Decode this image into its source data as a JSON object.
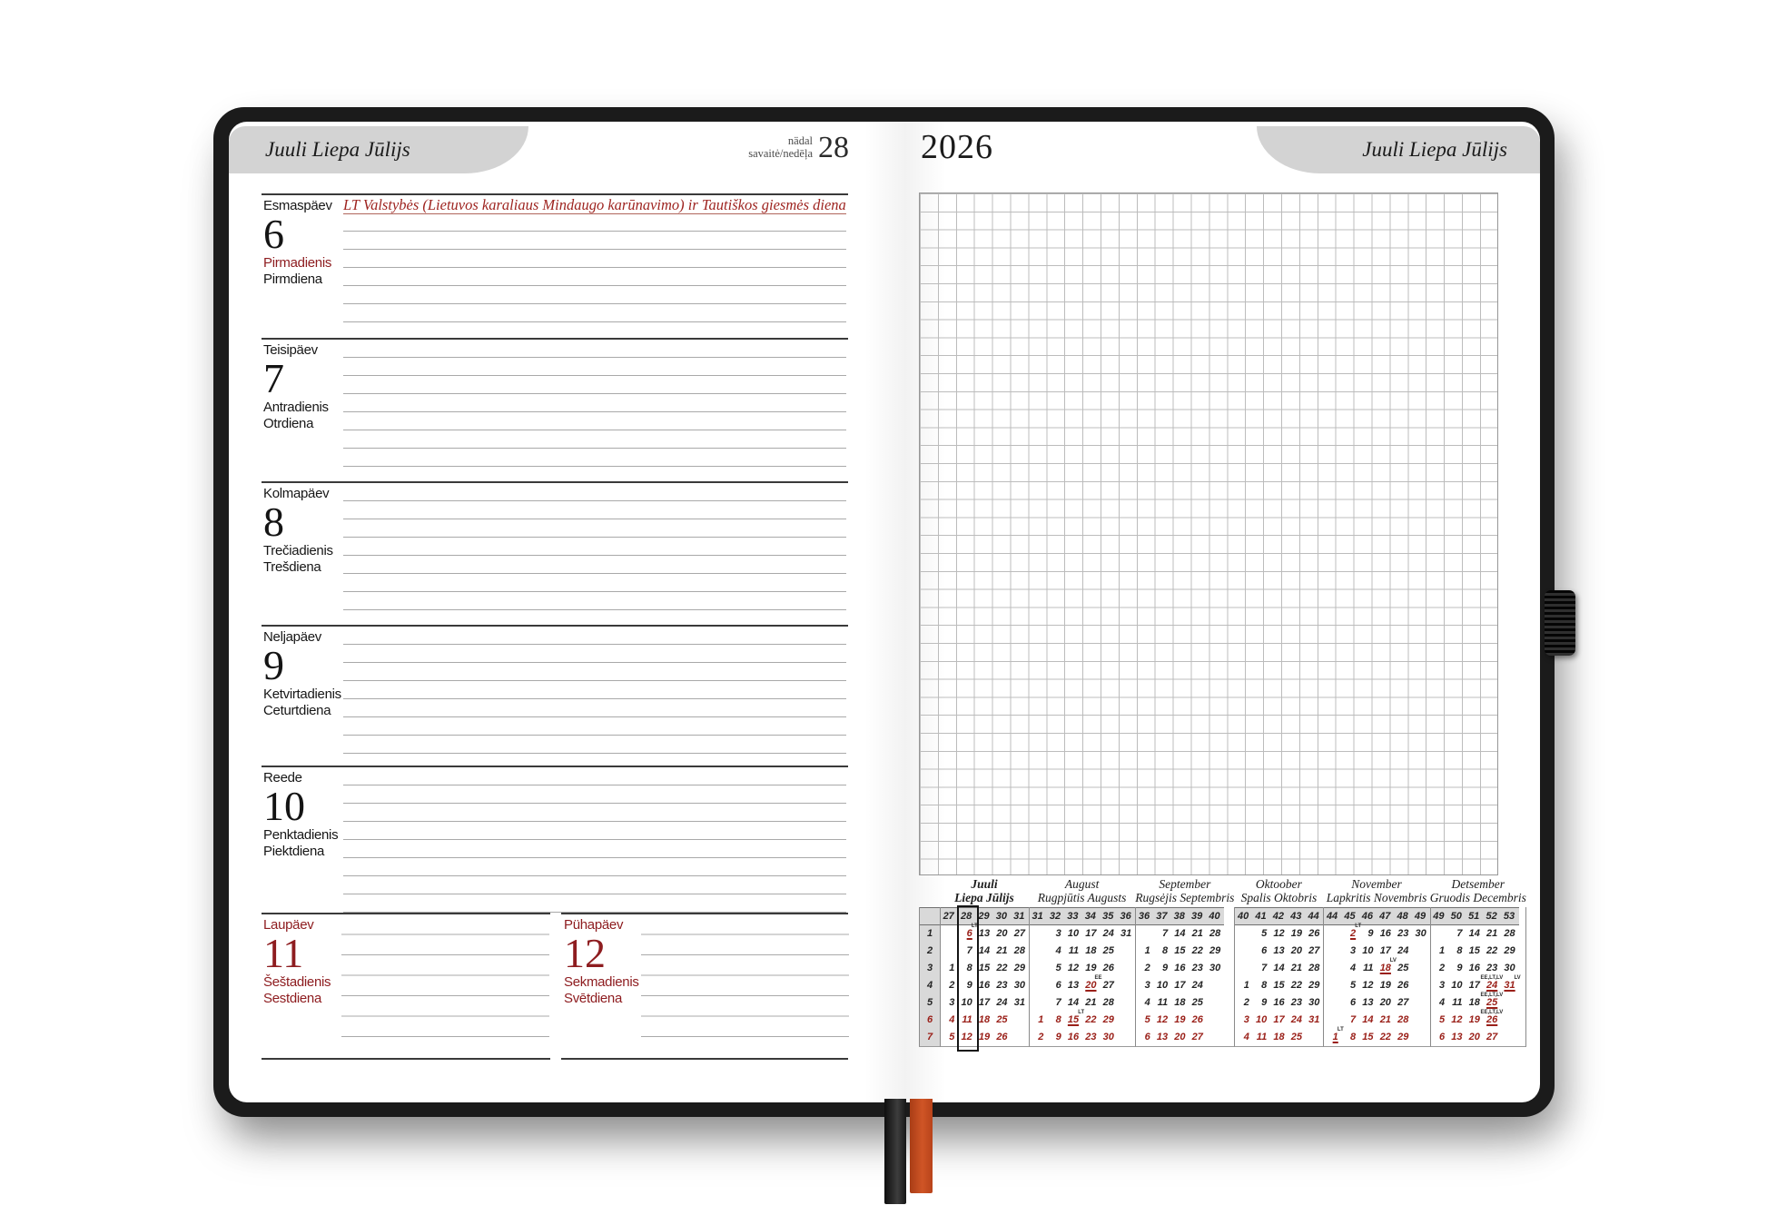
{
  "header": {
    "month_tab": "Juuli Liepa Jūlijs",
    "week_label_line1": "nädal",
    "week_label_line2": "savaitė/nedēļa",
    "week_number": "28",
    "year": "2026"
  },
  "holiday_note": "LT Valstybės (Lietuvos karaliaus Mindaugo karūnavimo) ir Tautiškos giesmės diena",
  "days": [
    {
      "ee": "Esmaspäev",
      "num": "6",
      "lt": "Pirmadienis",
      "lv": "Pirmdiena"
    },
    {
      "ee": "Teisipäev",
      "num": "7",
      "lt": "Antradienis",
      "lv": "Otrdiena"
    },
    {
      "ee": "Kolmapäev",
      "num": "8",
      "lt": "Trečiadienis",
      "lv": "Trešdiena"
    },
    {
      "ee": "Neljapäev",
      "num": "9",
      "lt": "Ketvirtadienis",
      "lv": "Ceturtdiena"
    },
    {
      "ee": "Reede",
      "num": "10",
      "lt": "Penktadienis",
      "lv": "Piektdiena"
    },
    {
      "ee": "Laupäev",
      "num": "11",
      "lt": "Šeštadienis",
      "lv": "Sestdiena"
    },
    {
      "ee": "Pühapäev",
      "num": "12",
      "lt": "Sekmadienis",
      "lv": "Svētdiena"
    }
  ],
  "mini_calendars": {
    "day_column": [
      "1",
      "2",
      "3",
      "4",
      "5",
      "6",
      "7"
    ],
    "months": [
      {
        "title1": "Juuli",
        "title2": "Liepa Jūlijs",
        "bold": true,
        "current_week": "28",
        "weeks": [
          "27",
          "28",
          "29",
          "30",
          "31"
        ],
        "rows": [
          [
            "",
            "6",
            "13",
            "20",
            "27"
          ],
          [
            "",
            "7",
            "14",
            "21",
            "28"
          ],
          [
            "1",
            "8",
            "15",
            "22",
            "29"
          ],
          [
            "2",
            "9",
            "16",
            "23",
            "30"
          ],
          [
            "3",
            "10",
            "17",
            "24",
            "31"
          ],
          [
            "4",
            "11",
            "18",
            "25",
            ""
          ],
          [
            "5",
            "12",
            "19",
            "26",
            ""
          ]
        ],
        "holidays": {
          "6": "LT"
        }
      },
      {
        "title1": "August",
        "title2": "Rugpjūtis Augusts",
        "bold": false,
        "weeks": [
          "31",
          "32",
          "33",
          "34",
          "35",
          "36"
        ],
        "rows": [
          [
            "",
            "3",
            "10",
            "17",
            "24",
            "31"
          ],
          [
            "",
            "4",
            "11",
            "18",
            "25",
            ""
          ],
          [
            "",
            "5",
            "12",
            "19",
            "26",
            ""
          ],
          [
            "",
            "6",
            "13",
            "20",
            "27",
            ""
          ],
          [
            "",
            "7",
            "14",
            "21",
            "28",
            ""
          ],
          [
            "1",
            "8",
            "15",
            "22",
            "29",
            ""
          ],
          [
            "2",
            "9",
            "16",
            "23",
            "30",
            ""
          ]
        ],
        "holidays": {
          "15": "LT",
          "20": "EE"
        }
      },
      {
        "title1": "September",
        "title2": "Rugsėjis Septembris",
        "bold": false,
        "weeks": [
          "36",
          "37",
          "38",
          "39",
          "40"
        ],
        "rows": [
          [
            "",
            "7",
            "14",
            "21",
            "28"
          ],
          [
            "1",
            "8",
            "15",
            "22",
            "29"
          ],
          [
            "2",
            "9",
            "16",
            "23",
            "30"
          ],
          [
            "3",
            "10",
            "17",
            "24",
            ""
          ],
          [
            "4",
            "11",
            "18",
            "25",
            ""
          ],
          [
            "5",
            "12",
            "19",
            "26",
            ""
          ],
          [
            "6",
            "13",
            "20",
            "27",
            ""
          ]
        ],
        "holidays": {}
      },
      {
        "title1": "Oktoober",
        "title2": "Spalis Oktobris",
        "bold": false,
        "weeks": [
          "40",
          "41",
          "42",
          "43",
          "44"
        ],
        "rows": [
          [
            "",
            "5",
            "12",
            "19",
            "26"
          ],
          [
            "",
            "6",
            "13",
            "20",
            "27"
          ],
          [
            "",
            "7",
            "14",
            "21",
            "28"
          ],
          [
            "1",
            "8",
            "15",
            "22",
            "29"
          ],
          [
            "2",
            "9",
            "16",
            "23",
            "30"
          ],
          [
            "3",
            "10",
            "17",
            "24",
            "31"
          ],
          [
            "4",
            "11",
            "18",
            "25",
            ""
          ]
        ],
        "holidays": {}
      },
      {
        "title1": "November",
        "title2": "Lapkritis Novembris",
        "bold": false,
        "weeks": [
          "44",
          "45",
          "46",
          "47",
          "48",
          "49"
        ],
        "rows": [
          [
            "",
            "2",
            "9",
            "16",
            "23",
            "30"
          ],
          [
            "",
            "3",
            "10",
            "17",
            "24",
            ""
          ],
          [
            "",
            "4",
            "11",
            "18",
            "25",
            ""
          ],
          [
            "",
            "5",
            "12",
            "19",
            "26",
            ""
          ],
          [
            "",
            "6",
            "13",
            "20",
            "27",
            ""
          ],
          [
            "",
            "7",
            "14",
            "21",
            "28",
            ""
          ],
          [
            "1",
            "8",
            "15",
            "22",
            "29",
            ""
          ]
        ],
        "holidays": {
          "1": "LT",
          "2": "LT",
          "18": "LV"
        }
      },
      {
        "title1": "Detsember",
        "title2": "Gruodis Decembris",
        "bold": false,
        "weeks": [
          "49",
          "50",
          "51",
          "52",
          "53"
        ],
        "rows": [
          [
            "",
            "7",
            "14",
            "21",
            "28"
          ],
          [
            "1",
            "8",
            "15",
            "22",
            "29"
          ],
          [
            "2",
            "9",
            "16",
            "23",
            "30"
          ],
          [
            "3",
            "10",
            "17",
            "24",
            "31"
          ],
          [
            "4",
            "11",
            "18",
            "25",
            ""
          ],
          [
            "5",
            "12",
            "19",
            "26",
            ""
          ],
          [
            "6",
            "13",
            "20",
            "27",
            ""
          ]
        ],
        "holidays": {
          "24": "EE,LT,LV",
          "25": "EE,LT,LV",
          "26": "EE,LT,LV",
          "31": "LV"
        }
      }
    ]
  },
  "colors": {
    "cover_black": "#1b1b1b",
    "tab_gray": "#d3d3d3",
    "accent_red": "#9a2019",
    "holiday_text_red": "#9e2420",
    "weekend_red": "#8e1d20",
    "ribbon_red": "#cf5526"
  }
}
